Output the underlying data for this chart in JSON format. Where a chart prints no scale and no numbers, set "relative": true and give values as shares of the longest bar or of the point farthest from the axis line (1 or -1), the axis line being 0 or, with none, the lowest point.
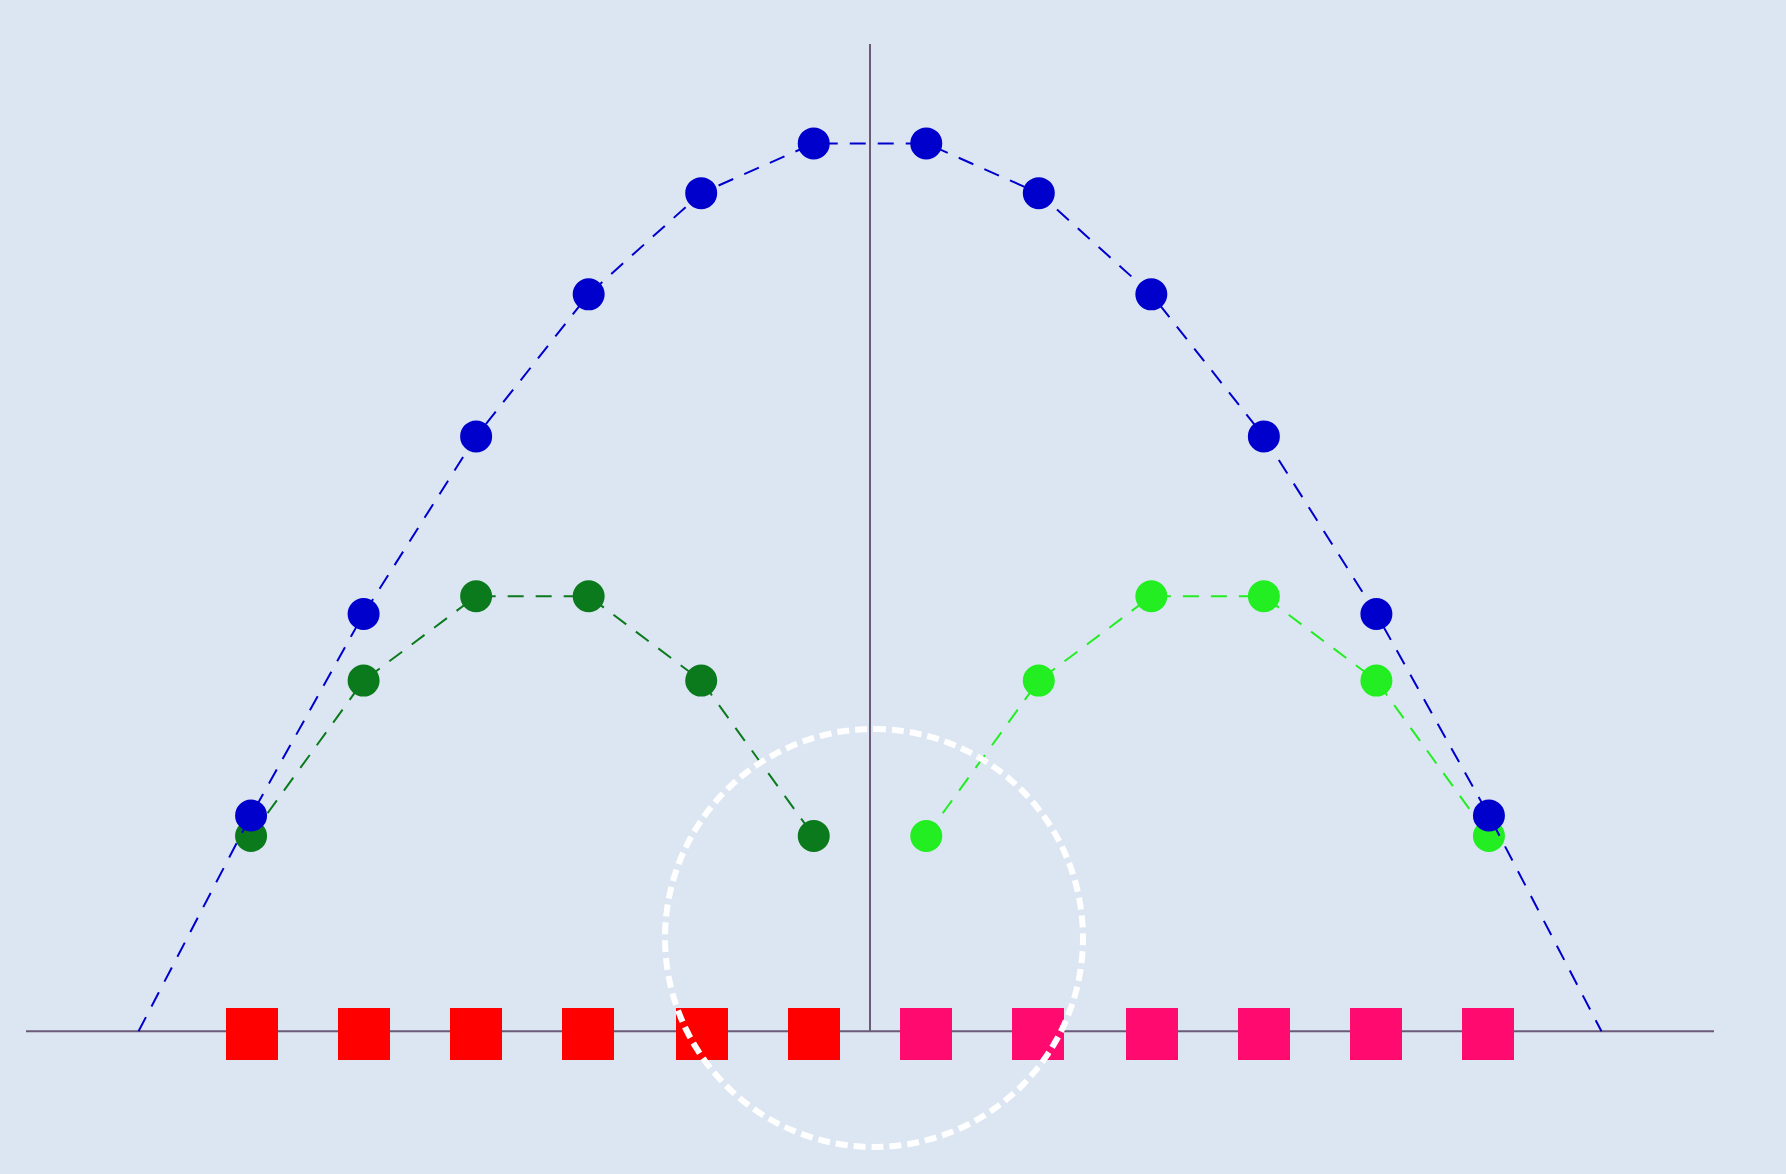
{
  "chart_data": {
    "type": "line",
    "relative": true,
    "categories": [
      null,
      null,
      null,
      null,
      null,
      null,
      null,
      null,
      null,
      null,
      null,
      null,
      null,
      null,
      null,
      null
    ],
    "line_style": "dashed",
    "marker": "circle",
    "legend": false,
    "tick_labels": false,
    "series": [
      {
        "color": "#0000cc",
        "values": [
          null,
          0,
          0.243,
          0.47,
          0.67,
          0.83,
          0.944,
          1,
          1,
          0.944,
          0.83,
          0.67,
          0.47,
          0.243,
          0,
          null
        ]
      },
      {
        "color": "#0b7a1c",
        "values": [
          null,
          null,
          0.22,
          0.395,
          0.49,
          0.49,
          0.395,
          0.22,
          null,
          null,
          null,
          null,
          null,
          null,
          null,
          null
        ]
      },
      {
        "color": "#22ee22",
        "values": [
          null,
          null,
          null,
          null,
          null,
          null,
          null,
          null,
          0.22,
          0.395,
          0.49,
          0.49,
          0.395,
          0.22,
          null,
          null
        ]
      }
    ]
  }
}
